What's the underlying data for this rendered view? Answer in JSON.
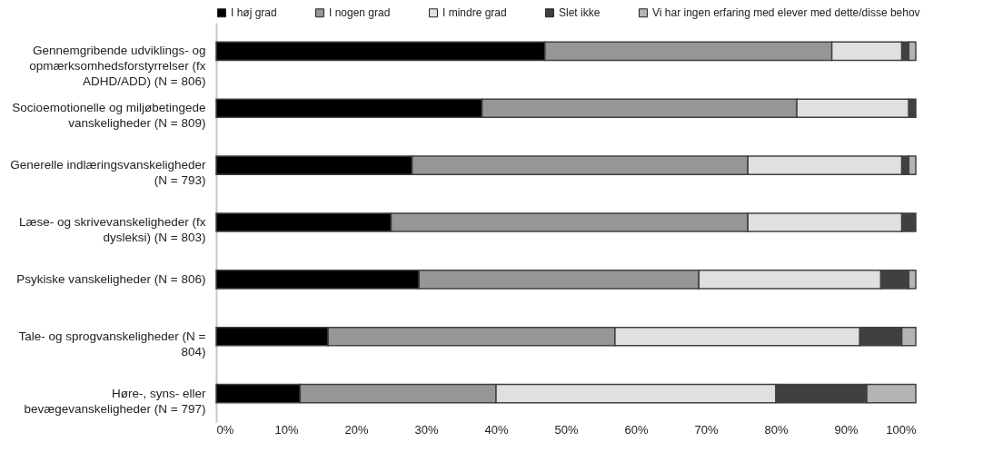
{
  "chart_data": {
    "type": "bar",
    "orientation": "horizontal",
    "stacked": true,
    "categories": [
      "Gennemgribende udviklings- og opmærksomhedsforstyrrelser (fx ADHD/ADD) (N = 806)",
      "Socioemotionelle og miljøbetingede vanskeligheder (N = 809)",
      "Generelle indlæringsvanskeligheder (N = 793)",
      "Læse- og skrivevanskeligheder (fx dysleksi) (N = 803)",
      "Psykiske vanskeligheder (N = 806)",
      "Tale- og sprogvanskeligheder (N = 804)",
      "Høre-, syns- eller bevægevanskeligheder (N = 797)"
    ],
    "series": [
      {
        "name": "I høj grad",
        "color": "#000000",
        "values": [
          47,
          38,
          28,
          25,
          29,
          16,
          12
        ]
      },
      {
        "name": "I nogen grad",
        "color": "#969696",
        "values": [
          41,
          45,
          48,
          51,
          40,
          41,
          28
        ]
      },
      {
        "name": "I mindre grad",
        "color": "#e0e0e0",
        "values": [
          10,
          16,
          22,
          22,
          26,
          35,
          40
        ]
      },
      {
        "name": "Slet ikke",
        "color": "#404040",
        "values": [
          1,
          1,
          1,
          2,
          4,
          6,
          13
        ]
      },
      {
        "name": "Vi har ingen erfaring med elever med dette/disse behov",
        "color": "#b4b4b4",
        "values": [
          1,
          0,
          1,
          0,
          1,
          2,
          7
        ]
      }
    ],
    "xlim": [
      0,
      100
    ],
    "xticks": [
      {
        "value": 0,
        "label": "0%"
      },
      {
        "value": 10,
        "label": "10%"
      },
      {
        "value": 20,
        "label": "20%"
      },
      {
        "value": 30,
        "label": "30%"
      },
      {
        "value": 40,
        "label": "40%"
      },
      {
        "value": 50,
        "label": "50%"
      },
      {
        "value": 60,
        "label": "60%"
      },
      {
        "value": 70,
        "label": "70%"
      },
      {
        "value": 80,
        "label": "80%"
      },
      {
        "value": 90,
        "label": "90%"
      },
      {
        "value": 100,
        "label": "100%"
      }
    ],
    "legend": "top",
    "grid": false
  }
}
